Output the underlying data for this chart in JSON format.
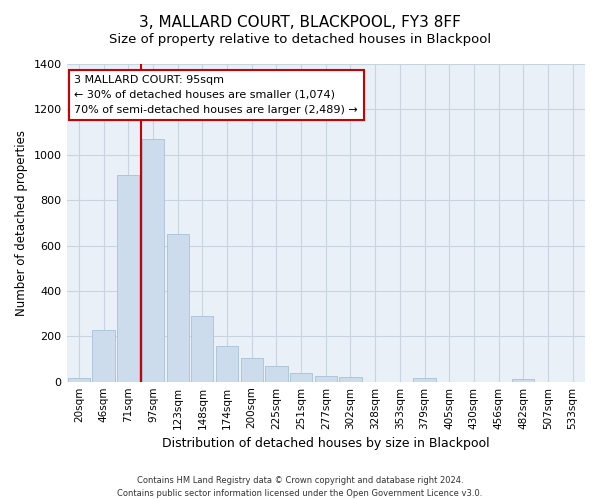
{
  "title": "3, MALLARD COURT, BLACKPOOL, FY3 8FF",
  "subtitle": "Size of property relative to detached houses in Blackpool",
  "xlabel": "Distribution of detached houses by size in Blackpool",
  "ylabel": "Number of detached properties",
  "bar_labels": [
    "20sqm",
    "46sqm",
    "71sqm",
    "97sqm",
    "123sqm",
    "148sqm",
    "174sqm",
    "200sqm",
    "225sqm",
    "251sqm",
    "277sqm",
    "302sqm",
    "328sqm",
    "353sqm",
    "379sqm",
    "405sqm",
    "430sqm",
    "456sqm",
    "482sqm",
    "507sqm",
    "533sqm"
  ],
  "bar_heights": [
    15,
    228,
    910,
    1070,
    650,
    290,
    158,
    105,
    70,
    40,
    25,
    20,
    0,
    0,
    18,
    0,
    0,
    0,
    10,
    0,
    0
  ],
  "bar_color": "#ccdcec",
  "bar_edge_color": "#a8c0d6",
  "vline_index": 2.5,
  "vline_color": "#cc0000",
  "annotation_line1": "3 MALLARD COURT: 95sqm",
  "annotation_line2": "← 30% of detached houses are smaller (1,074)",
  "annotation_line3": "70% of semi-detached houses are larger (2,489) →",
  "annotation_box_color": "#ffffff",
  "annotation_box_edge": "#cc0000",
  "ylim": [
    0,
    1400
  ],
  "yticks": [
    0,
    200,
    400,
    600,
    800,
    1000,
    1200,
    1400
  ],
  "footer_line1": "Contains HM Land Registry data © Crown copyright and database right 2024.",
  "footer_line2": "Contains public sector information licensed under the Open Government Licence v3.0.",
  "background_color": "#ffffff",
  "plot_bg_color": "#eaf0f8",
  "grid_color": "#c8d4e0"
}
